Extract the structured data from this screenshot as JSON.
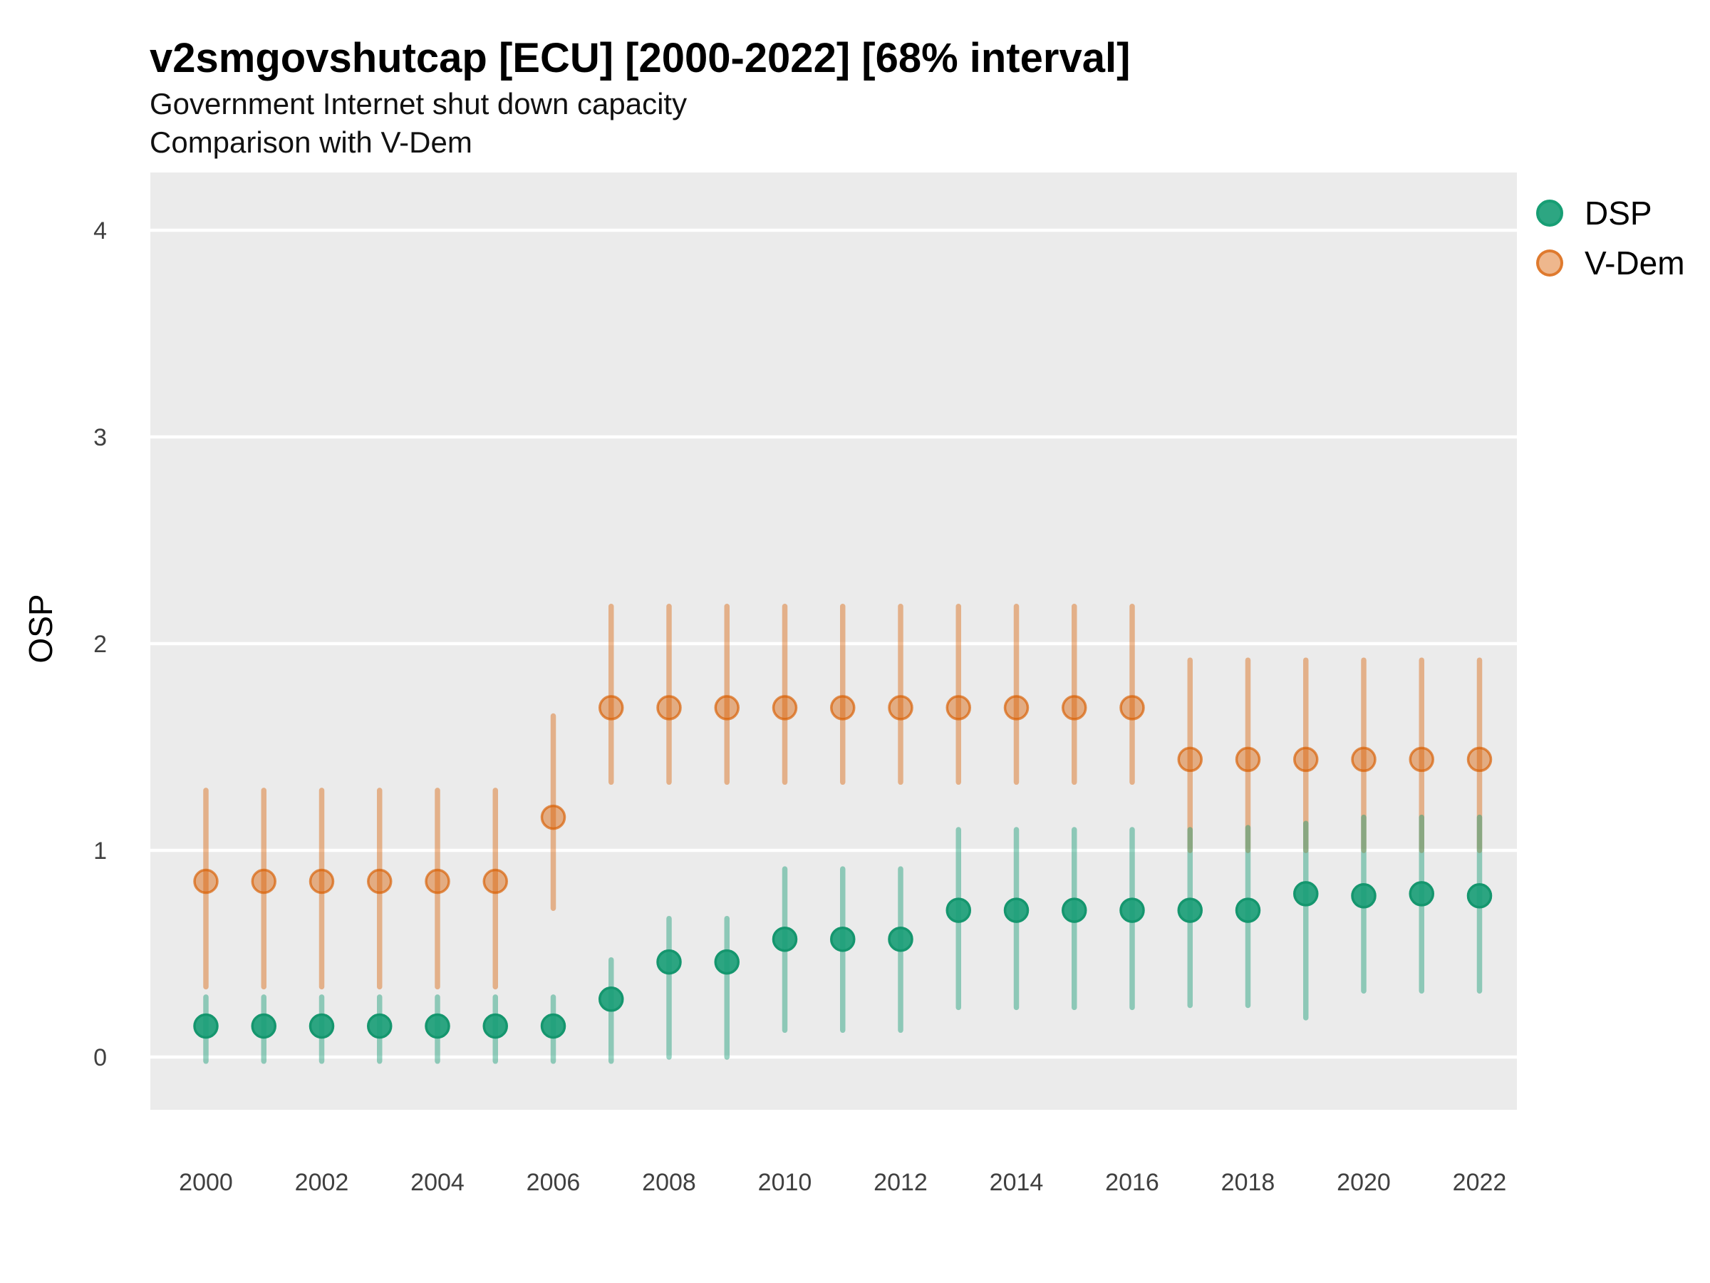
{
  "header": {
    "title": "v2smgovshutcap [ECU] [2000-2022] [68% interval]",
    "subtitle1": "Government Internet shut down capacity",
    "subtitle2": "Comparison with V-Dem"
  },
  "legend": {
    "dsp_label": "DSP",
    "vdem_label": "V-Dem"
  },
  "colors": {
    "dsp": "#1b9e77",
    "vdem": "#d95f02",
    "panel_background": "#ebebeb",
    "gridline": "#ffffff",
    "tick_label": "#404040"
  },
  "chart_data": {
    "type": "scatter",
    "subtype": "pointrange",
    "title": "v2smgovshutcap [ECU] [2000-2022] [68% interval]",
    "subtitle": [
      "Government Internet shut down capacity",
      "Comparison with V-Dem"
    ],
    "xlabel": "",
    "ylabel": "OSP",
    "x": [
      2000,
      2001,
      2002,
      2003,
      2004,
      2005,
      2006,
      2007,
      2008,
      2009,
      2010,
      2011,
      2012,
      2013,
      2014,
      2015,
      2016,
      2017,
      2018,
      2019,
      2020,
      2021,
      2022
    ],
    "xtick_labels": [
      "2000",
      "2002",
      "2004",
      "2006",
      "2008",
      "2010",
      "2012",
      "2014",
      "2016",
      "2018",
      "2020",
      "2022"
    ],
    "xticks": [
      2000,
      2002,
      2004,
      2006,
      2008,
      2010,
      2012,
      2014,
      2016,
      2018,
      2020,
      2022
    ],
    "yticks": [
      0,
      1,
      2,
      3,
      4
    ],
    "ytick_labels": [
      "0",
      "1",
      "2",
      "3",
      "4"
    ],
    "ylim": [
      -0.26,
      4.3
    ],
    "xlim": [
      1999.05,
      2022.75
    ],
    "grid": "major-horizontal-only",
    "legend_position": "right",
    "interval_level": "68%",
    "series": [
      {
        "name": "DSP",
        "values": [
          0.15,
          0.15,
          0.15,
          0.15,
          0.15,
          0.15,
          0.15,
          0.28,
          0.46,
          0.46,
          0.57,
          0.57,
          0.57,
          0.71,
          0.71,
          0.71,
          0.71,
          0.71,
          0.71,
          0.79,
          0.78,
          0.79,
          0.78
        ],
        "lower": [
          -0.02,
          -0.02,
          -0.02,
          -0.02,
          -0.02,
          -0.02,
          -0.02,
          -0.02,
          0.0,
          0.0,
          0.13,
          0.13,
          0.13,
          0.24,
          0.24,
          0.24,
          0.24,
          0.25,
          0.25,
          0.19,
          0.32,
          0.32,
          0.32
        ],
        "upper": [
          0.29,
          0.29,
          0.29,
          0.29,
          0.29,
          0.29,
          0.29,
          0.47,
          0.67,
          0.67,
          0.91,
          0.91,
          0.91,
          1.1,
          1.1,
          1.1,
          1.1,
          1.1,
          1.11,
          1.13,
          1.16,
          1.16,
          1.16
        ]
      },
      {
        "name": "V-Dem",
        "values": [
          0.85,
          0.85,
          0.85,
          0.85,
          0.85,
          0.85,
          1.16,
          1.69,
          1.69,
          1.69,
          1.69,
          1.69,
          1.69,
          1.69,
          1.69,
          1.69,
          1.69,
          1.44,
          1.44,
          1.44,
          1.44,
          1.44,
          1.44
        ],
        "lower": [
          0.34,
          0.34,
          0.34,
          0.34,
          0.34,
          0.34,
          0.72,
          1.33,
          1.33,
          1.33,
          1.33,
          1.33,
          1.33,
          1.33,
          1.33,
          1.33,
          1.33,
          1.0,
          1.0,
          1.0,
          1.0,
          1.0,
          1.0
        ],
        "upper": [
          1.29,
          1.29,
          1.29,
          1.29,
          1.29,
          1.29,
          1.65,
          2.18,
          2.18,
          2.18,
          2.18,
          2.18,
          2.18,
          2.18,
          2.18,
          2.18,
          2.18,
          1.92,
          1.92,
          1.92,
          1.92,
          1.92,
          1.92
        ]
      }
    ]
  }
}
